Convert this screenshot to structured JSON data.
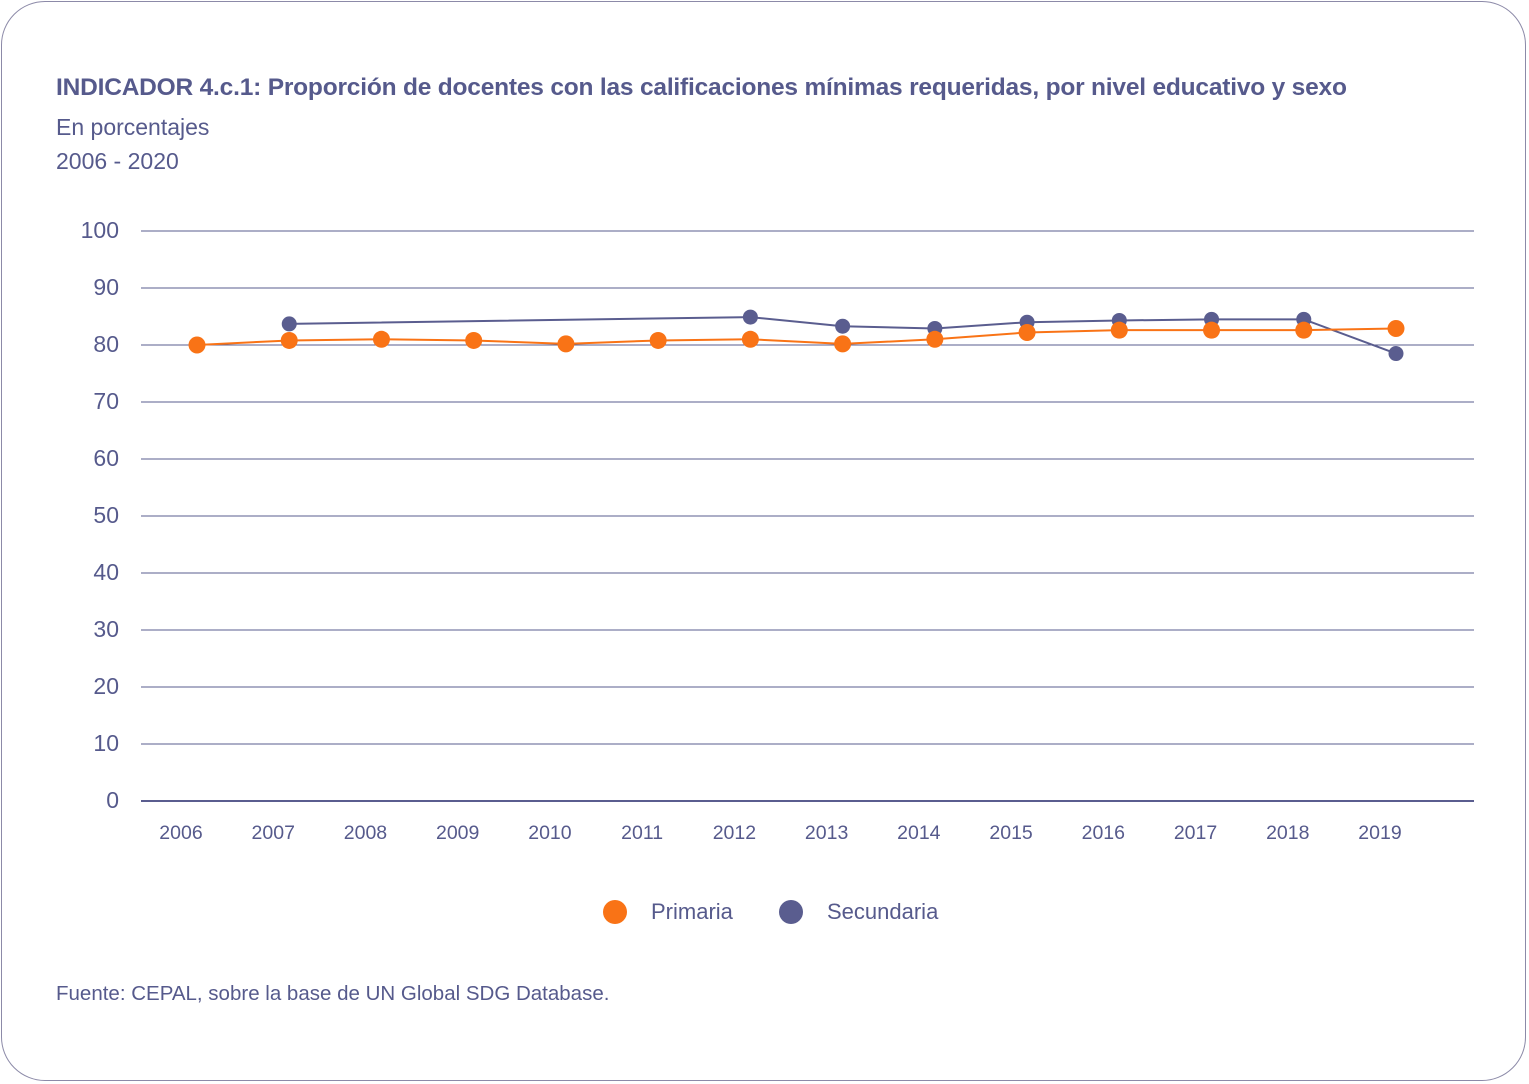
{
  "header": {
    "title": "INDICADOR 4.c.1: Proporción de docentes con las calificaciones mínimas requeridas, por nivel educativo y sexo",
    "subtitle": "En porcentajes",
    "period": "2006 - 2020"
  },
  "legend": {
    "primaria_label": "Primaria",
    "secundaria_label": "Secundaria"
  },
  "source": "Fuente: CEPAL, sobre la base de UN Global SDG Database.",
  "colors": {
    "primaria": "#f97316",
    "secundaria": "#5a5d8f",
    "grid": "#5a5d8f",
    "text": "#565a8c"
  },
  "chart_data": {
    "type": "line",
    "title": "INDICADOR 4.c.1: Proporción de docentes con las calificaciones mínimas requeridas, por nivel educativo y sexo",
    "xlabel": "",
    "ylabel": "",
    "ylim": [
      0,
      100
    ],
    "yticks": [
      0,
      10,
      20,
      30,
      40,
      50,
      60,
      70,
      80,
      90,
      100
    ],
    "categories": [
      "2006",
      "2007",
      "2008",
      "2009",
      "2010",
      "2011",
      "2012",
      "2013",
      "2014",
      "2015",
      "2016",
      "2017",
      "2018",
      "2019"
    ],
    "grid": true,
    "legend_position": "bottom-center",
    "series": [
      {
        "name": "Primaria",
        "color": "#f97316",
        "values": [
          80.0,
          80.8,
          81.0,
          80.8,
          80.2,
          80.8,
          81.0,
          80.2,
          81.0,
          82.2,
          82.6,
          82.6,
          82.6,
          82.9
        ]
      },
      {
        "name": "Secundaria",
        "color": "#5a5d8f",
        "values": [
          null,
          83.7,
          null,
          null,
          null,
          null,
          84.9,
          83.3,
          82.9,
          84.0,
          84.3,
          84.5,
          84.5,
          78.5
        ]
      }
    ]
  }
}
